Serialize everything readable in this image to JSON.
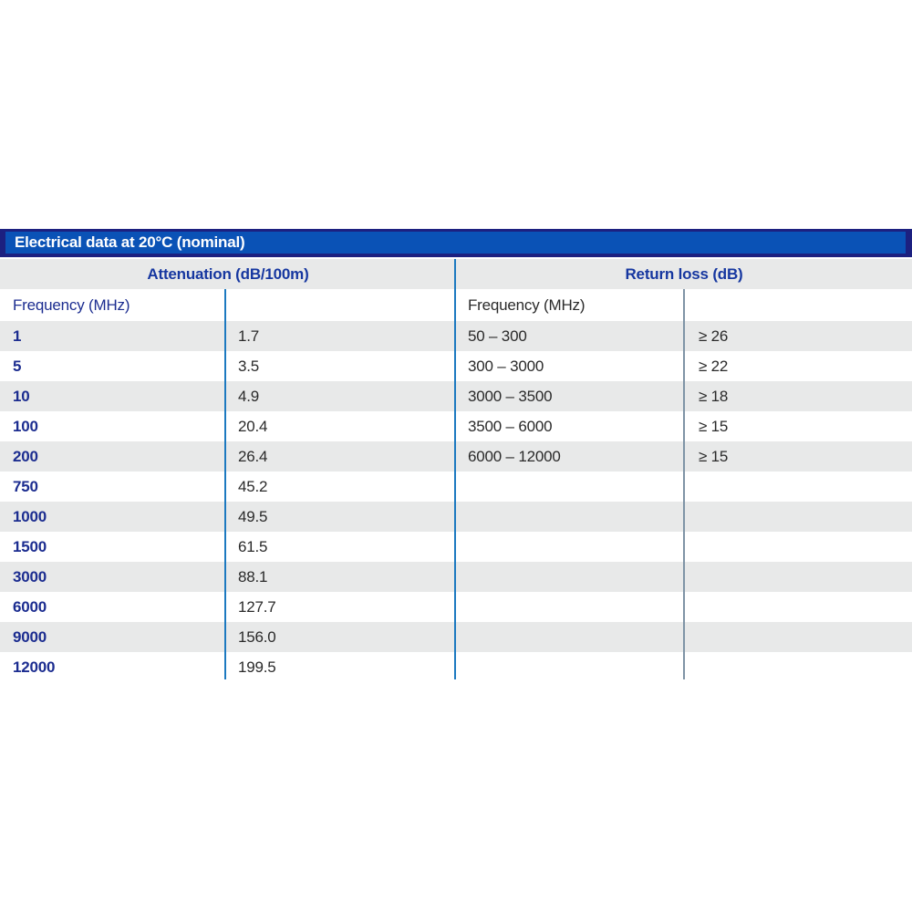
{
  "table": {
    "title": "Electrical data at 20°C (nominal)",
    "colors": {
      "title_bar_fill": "#0a52b6",
      "title_bar_border": "#1c2080",
      "title_text": "#ffffff",
      "header_blue_text": "#1637a0",
      "frequency_blue_text": "#1c2d90",
      "dark_text": "#2a2a2a",
      "row_alt_background": "#e8e9e9",
      "row_background": "#ffffff",
      "divider_blue": "#1c79c0",
      "divider_slate": "#7f94a6"
    },
    "attenuation": {
      "header": "Attenuation (dB/100m)",
      "subheader": "Frequency (MHz)",
      "rows": [
        {
          "frequency": "1",
          "value": "1.7"
        },
        {
          "frequency": "5",
          "value": "3.5"
        },
        {
          "frequency": "10",
          "value": "4.9"
        },
        {
          "frequency": "100",
          "value": "20.4"
        },
        {
          "frequency": "200",
          "value": "26.4"
        },
        {
          "frequency": "750",
          "value": "45.2"
        },
        {
          "frequency": "1000",
          "value": "49.5"
        },
        {
          "frequency": "1500",
          "value": "61.5"
        },
        {
          "frequency": "3000",
          "value": "88.1"
        },
        {
          "frequency": "6000",
          "value": "127.7"
        },
        {
          "frequency": "9000",
          "value": "156.0"
        },
        {
          "frequency": "12000",
          "value": "199.5"
        }
      ]
    },
    "return_loss": {
      "header": "Return loss (dB)",
      "subheader": "Frequency (MHz)",
      "rows": [
        {
          "range": "50 – 300",
          "value": "≥ 26"
        },
        {
          "range": "300 – 3000",
          "value": "≥ 22"
        },
        {
          "range": "3000 – 3500",
          "value": "≥ 18"
        },
        {
          "range": "3500 – 6000",
          "value": "≥ 15"
        },
        {
          "range": "6000 – 12000",
          "value": "≥ 15"
        }
      ]
    }
  },
  "chart_data": [
    {
      "type": "table",
      "title": "Attenuation (dB/100m)",
      "columns": [
        "Frequency (MHz)",
        "Attenuation (dB/100m)"
      ],
      "rows": [
        [
          1,
          1.7
        ],
        [
          5,
          3.5
        ],
        [
          10,
          4.9
        ],
        [
          100,
          20.4
        ],
        [
          200,
          26.4
        ],
        [
          750,
          45.2
        ],
        [
          1000,
          49.5
        ],
        [
          1500,
          61.5
        ],
        [
          3000,
          88.1
        ],
        [
          6000,
          127.7
        ],
        [
          9000,
          156.0
        ],
        [
          12000,
          199.5
        ]
      ]
    },
    {
      "type": "table",
      "title": "Return loss (dB)",
      "columns": [
        "Frequency (MHz)",
        "Return loss (dB)"
      ],
      "rows": [
        [
          "50 – 300",
          "≥ 26"
        ],
        [
          "300 – 3000",
          "≥ 22"
        ],
        [
          "3000 – 3500",
          "≥ 18"
        ],
        [
          "3500 – 6000",
          "≥ 15"
        ],
        [
          "6000 – 12000",
          "≥ 15"
        ]
      ]
    }
  ]
}
